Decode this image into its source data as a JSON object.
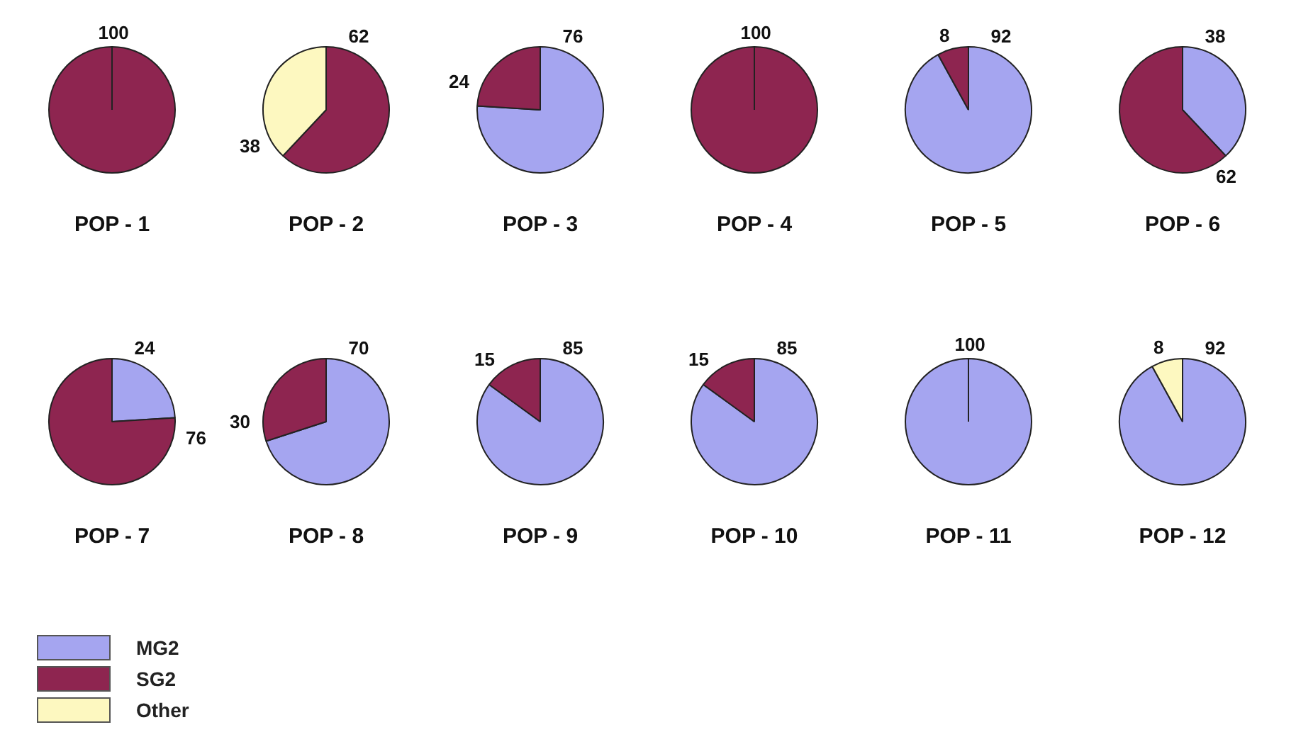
{
  "chart_data": [
    {
      "type": "pie",
      "title": "POP - 1",
      "categories": [
        "MG2",
        "SG2",
        "Other"
      ],
      "values": [
        null,
        100,
        null
      ],
      "colors": [
        "#a5a5f0",
        "#8e2550",
        "#fdf8c0"
      ],
      "data_labels": true,
      "legend": "bottom left"
    },
    {
      "type": "pie",
      "title": "POP - 2",
      "categories": [
        null,
        null
      ],
      "values": [
        62,
        38
      ],
      "colors": [
        "#8e2550",
        "#fdf8c0"
      ],
      "data_labels": true
    },
    {
      "type": "pie",
      "title": "POP - 3",
      "categories": [
        null,
        null
      ],
      "values": [
        76,
        24
      ],
      "colors": [
        "#a5a5f0",
        "#8e2550"
      ],
      "data_labels": true
    },
    {
      "type": "pie",
      "title": "POP - 4",
      "categories": [
        null
      ],
      "values": [
        100
      ],
      "colors": [
        "#8e2550"
      ],
      "data_labels": true
    },
    {
      "type": "pie",
      "title": "POP - 5",
      "categories": [
        null,
        null
      ],
      "values": [
        92,
        8
      ],
      "colors": [
        "#a5a5f0",
        "#8e2550"
      ],
      "data_labels": true
    },
    {
      "type": "pie",
      "title": "POP - 6",
      "categories": [
        null,
        null
      ],
      "values": [
        38,
        62
      ],
      "colors": [
        "#a5a5f0",
        "#8e2550"
      ],
      "data_labels": true
    },
    {
      "type": "pie",
      "title": "POP - 7",
      "categories": [
        null,
        null
      ],
      "values": [
        24,
        76
      ],
      "colors": [
        "#a5a5f0",
        "#8e2550"
      ],
      "data_labels": true
    },
    {
      "type": "pie",
      "title": "POP - 8",
      "categories": [
        null,
        null
      ],
      "values": [
        70,
        30
      ],
      "colors": [
        "#a5a5f0",
        "#8e2550"
      ],
      "data_labels": true
    },
    {
      "type": "pie",
      "title": "POP - 9",
      "categories": [
        null,
        null
      ],
      "values": [
        85,
        15
      ],
      "colors": [
        "#a5a5f0",
        "#8e2550"
      ],
      "data_labels": true
    },
    {
      "type": "pie",
      "title": "POP - 10",
      "categories": [
        null,
        null
      ],
      "values": [
        85,
        15
      ],
      "colors": [
        "#a5a5f0",
        "#8e2550"
      ],
      "data_labels": true
    },
    {
      "type": "pie",
      "title": "POP - 11",
      "categories": [
        null
      ],
      "values": [
        100
      ],
      "colors": [
        "#a5a5f0"
      ],
      "data_labels": true
    },
    {
      "type": "pie",
      "title": "POP - 12",
      "categories": [
        null,
        null
      ],
      "values": [
        92,
        8
      ],
      "colors": [
        "#a5a5f0",
        "#fdf8c0"
      ],
      "data_labels": true
    }
  ]
}
